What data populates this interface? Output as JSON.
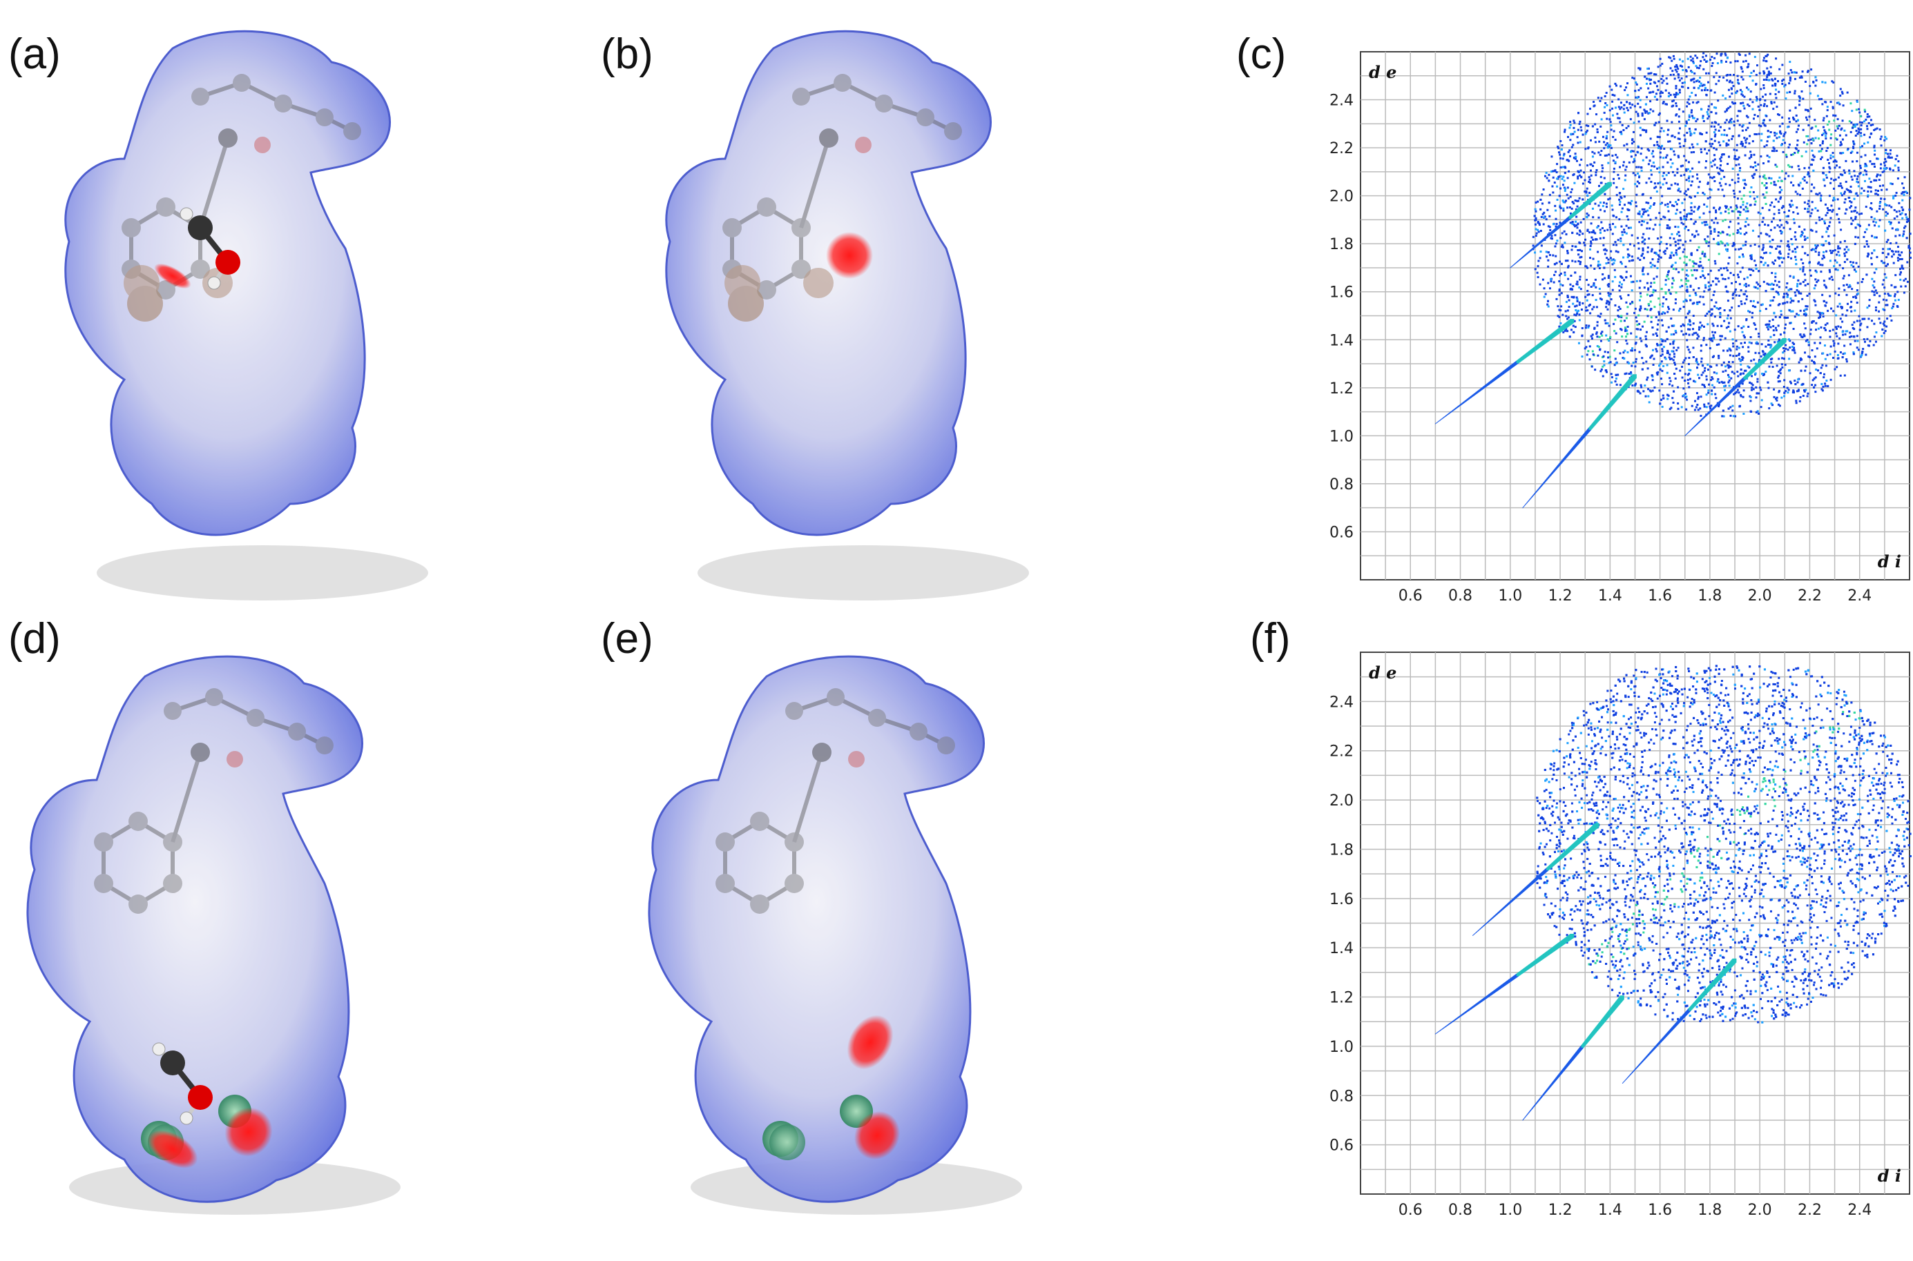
{
  "figure": {
    "panels": [
      {
        "id": "a",
        "label": "(a)",
        "kind": "surface",
        "has_methanol": true,
        "red_spots": 1
      },
      {
        "id": "b",
        "label": "(b)",
        "kind": "surface",
        "has_methanol": false,
        "red_spots": 1
      },
      {
        "id": "c",
        "label": "(c)",
        "kind": "fingerprint"
      },
      {
        "id": "d",
        "label": "(d)",
        "kind": "surface",
        "has_methanol": true,
        "red_spots": 2
      },
      {
        "id": "e",
        "label": "(e)",
        "kind": "surface",
        "has_methanol": false,
        "red_spots": 2
      },
      {
        "id": "f",
        "label": "(f)",
        "kind": "fingerprint"
      }
    ],
    "surface_colors": {
      "blue": "#5566dd",
      "white": "#f2f2f8",
      "red": "#ff1a1a",
      "carbon": "#333333",
      "oxygen": "#dd0000",
      "hydrogen": "#eeeeee",
      "chlorine": "#66bb88"
    }
  },
  "chart_data": [
    {
      "type": "heatmap",
      "panel": "c",
      "title": "",
      "xlabel": "d i",
      "ylabel": "d e",
      "xlim": [
        0.4,
        2.6
      ],
      "ylim": [
        0.4,
        2.6
      ],
      "x_ticks": [
        "0.6",
        "0.8",
        "1.0",
        "1.2",
        "1.4",
        "1.6",
        "1.8",
        "2.0",
        "2.2",
        "2.4"
      ],
      "y_ticks": [
        "0.6",
        "0.8",
        "1.0",
        "1.2",
        "1.4",
        "1.6",
        "1.8",
        "2.0",
        "2.2",
        "2.4"
      ],
      "grid": true,
      "spikes": [
        {
          "x": [
            0.7,
            1.25
          ],
          "y": [
            1.05,
            1.48
          ]
        },
        {
          "x": [
            1.05,
            1.5
          ],
          "y": [
            0.7,
            1.25
          ]
        },
        {
          "x": [
            1.0,
            1.4
          ],
          "y": [
            1.7,
            2.05
          ]
        },
        {
          "x": [
            1.7,
            2.1
          ],
          "y": [
            1.0,
            1.4
          ]
        }
      ],
      "cloud_extent": {
        "x": [
          1.0,
          2.6
        ],
        "y": [
          1.0,
          2.6
        ]
      }
    },
    {
      "type": "heatmap",
      "panel": "f",
      "title": "",
      "xlabel": "d i",
      "ylabel": "d e",
      "xlim": [
        0.4,
        2.6
      ],
      "ylim": [
        0.4,
        2.6
      ],
      "x_ticks": [
        "0.6",
        "0.8",
        "1.0",
        "1.2",
        "1.4",
        "1.6",
        "1.8",
        "2.0",
        "2.2",
        "2.4"
      ],
      "y_ticks": [
        "0.6",
        "0.8",
        "1.0",
        "1.2",
        "1.4",
        "1.6",
        "1.8",
        "2.0",
        "2.2",
        "2.4"
      ],
      "grid": true,
      "spikes": [
        {
          "x": [
            0.7,
            1.25
          ],
          "y": [
            1.05,
            1.45
          ]
        },
        {
          "x": [
            1.05,
            1.45
          ],
          "y": [
            0.7,
            1.2
          ]
        },
        {
          "x": [
            0.85,
            1.35
          ],
          "y": [
            1.45,
            1.9
          ]
        },
        {
          "x": [
            1.45,
            1.9
          ],
          "y": [
            0.85,
            1.35
          ]
        }
      ],
      "cloud_extent": {
        "x": [
          1.1,
          2.6
        ],
        "y": [
          1.1,
          2.55
        ]
      }
    }
  ]
}
